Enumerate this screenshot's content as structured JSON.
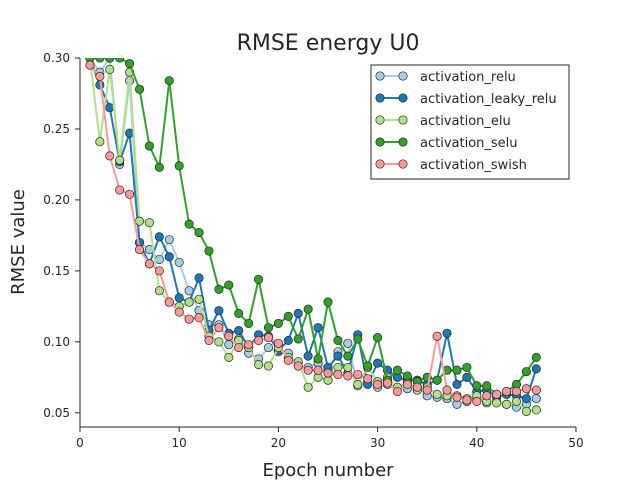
{
  "chart_data": {
    "type": "line",
    "title": "RMSE energy U0",
    "xlabel": "Epoch number",
    "ylabel": "RMSE value",
    "xlim": [
      0,
      50
    ],
    "ylim": [
      0.04,
      0.3
    ],
    "xticks": [
      "0",
      "10",
      "20",
      "30",
      "40",
      "50"
    ],
    "yticks": [
      "0.05",
      "0.10",
      "0.15",
      "0.20",
      "0.25",
      "0.30"
    ],
    "grid": false,
    "legend_position": "top-right",
    "x": [
      1,
      2,
      3,
      4,
      5,
      6,
      7,
      8,
      9,
      10,
      11,
      12,
      13,
      14,
      15,
      16,
      17,
      18,
      19,
      20,
      21,
      22,
      23,
      24,
      25,
      26,
      27,
      28,
      29,
      30,
      31,
      32,
      33,
      34,
      35,
      36,
      37,
      38,
      39,
      40,
      41,
      42,
      43,
      44,
      45,
      46
    ],
    "series": [
      {
        "name": "activation_relu",
        "color": "#a6cee3",
        "values": [
          0.3,
          0.29,
          0.3,
          0.225,
          0.284,
          0.17,
          0.165,
          0.158,
          0.172,
          0.156,
          0.136,
          0.122,
          0.112,
          0.112,
          0.098,
          0.102,
          0.092,
          0.088,
          0.096,
          0.093,
          0.092,
          0.083,
          0.082,
          0.085,
          0.08,
          0.093,
          0.099,
          0.069,
          0.072,
          0.068,
          0.07,
          0.068,
          0.067,
          0.068,
          0.062,
          0.061,
          0.06,
          0.056,
          0.058,
          0.06,
          0.057,
          0.058,
          0.056,
          0.054,
          0.056,
          0.06
        ]
      },
      {
        "name": "activation_leaky_relu",
        "color": "#1f78b4",
        "values": [
          0.3,
          0.281,
          0.265,
          0.227,
          0.247,
          0.17,
          0.155,
          0.174,
          0.16,
          0.131,
          0.128,
          0.145,
          0.108,
          0.122,
          0.106,
          0.108,
          0.096,
          0.105,
          0.104,
          0.094,
          0.101,
          0.12,
          0.09,
          0.11,
          0.082,
          0.09,
          0.078,
          0.105,
          0.07,
          0.085,
          0.08,
          0.075,
          0.073,
          0.073,
          0.07,
          0.073,
          0.106,
          0.07,
          0.075,
          0.065,
          0.066,
          0.061,
          0.063,
          0.062,
          0.06,
          0.081
        ]
      },
      {
        "name": "activation_elu",
        "color": "#b2df8a",
        "values": [
          0.3,
          0.241,
          0.292,
          0.228,
          0.29,
          0.185,
          0.184,
          0.136,
          0.128,
          0.125,
          0.128,
          0.13,
          0.104,
          0.1,
          0.089,
          0.101,
          0.096,
          0.084,
          0.083,
          0.096,
          0.089,
          0.086,
          0.068,
          0.075,
          0.073,
          0.082,
          0.082,
          0.07,
          0.082,
          0.072,
          0.075,
          0.068,
          0.071,
          0.066,
          0.068,
          0.063,
          0.062,
          0.062,
          0.06,
          0.062,
          0.058,
          0.057,
          0.056,
          0.058,
          0.051,
          0.052
        ]
      },
      {
        "name": "activation_selu",
        "color": "#33a02c",
        "values": [
          0.3,
          0.3,
          0.3,
          0.3,
          0.296,
          0.278,
          0.238,
          0.223,
          0.284,
          0.224,
          0.183,
          0.177,
          0.164,
          0.137,
          0.14,
          0.12,
          0.113,
          0.144,
          0.11,
          0.113,
          0.118,
          0.102,
          0.123,
          0.088,
          0.128,
          0.101,
          0.09,
          0.102,
          0.083,
          0.103,
          0.073,
          0.08,
          0.076,
          0.072,
          0.075,
          0.073,
          0.08,
          0.08,
          0.082,
          0.069,
          0.069,
          0.063,
          0.065,
          0.07,
          0.079,
          0.089
        ]
      },
      {
        "name": "activation_swish",
        "color": "#fb9a99",
        "values": [
          0.295,
          0.287,
          0.231,
          0.207,
          0.204,
          0.165,
          0.155,
          0.15,
          0.128,
          0.121,
          0.116,
          0.117,
          0.101,
          0.11,
          0.104,
          0.096,
          0.098,
          0.101,
          0.103,
          0.099,
          0.087,
          0.083,
          0.08,
          0.08,
          0.078,
          0.077,
          0.076,
          0.077,
          0.074,
          0.07,
          0.071,
          0.065,
          0.07,
          0.068,
          0.066,
          0.104,
          0.066,
          0.061,
          0.059,
          0.058,
          0.062,
          0.063,
          0.065,
          0.065,
          0.067,
          0.066
        ]
      }
    ]
  }
}
